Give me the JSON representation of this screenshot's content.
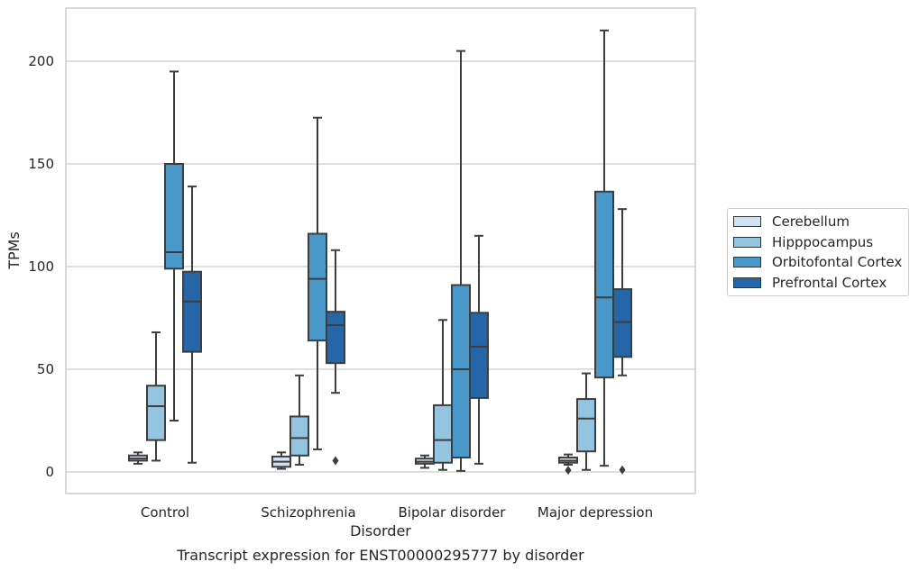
{
  "chart_data": {
    "type": "box",
    "caption": "Transcript expression for ENST00000295777 by disorder",
    "xlabel": "Disorder",
    "ylabel": "TPMs",
    "ylim": [
      -10,
      227
    ],
    "yticks": [
      0,
      50,
      100,
      150,
      200
    ],
    "grid": "horizontal",
    "legend_position": "right",
    "categories": [
      "Control",
      "Schizophrenia",
      "Bipolar disorder",
      "Major depression"
    ],
    "series": [
      {
        "name": "Cerebellum",
        "color": "#d0e1f2",
        "boxes": [
          {
            "whislo": 4,
            "q1": 5.5,
            "med": 6.5,
            "q3": 8,
            "whishi": 9.5,
            "fliers": []
          },
          {
            "whislo": 1.5,
            "q1": 2.5,
            "med": 5,
            "q3": 7.5,
            "whishi": 9.5,
            "fliers": []
          },
          {
            "whislo": 2,
            "q1": 4,
            "med": 5,
            "q3": 6.5,
            "whishi": 8,
            "fliers": []
          },
          {
            "whislo": 3.5,
            "q1": 4.5,
            "med": 5.5,
            "q3": 7,
            "whishi": 8.5,
            "fliers": [
              0.8
            ]
          }
        ]
      },
      {
        "name": "Hipppocampus",
        "color": "#94c4df",
        "boxes": [
          {
            "whislo": 5.5,
            "q1": 15.5,
            "med": 32,
            "q3": 42,
            "whishi": 68,
            "fliers": []
          },
          {
            "whislo": 3.5,
            "q1": 8,
            "med": 16.5,
            "q3": 27,
            "whishi": 47,
            "fliers": []
          },
          {
            "whislo": 1,
            "q1": 4.5,
            "med": 15.5,
            "q3": 32.5,
            "whishi": 74,
            "fliers": []
          },
          {
            "whislo": 1,
            "q1": 10,
            "med": 26,
            "q3": 35.5,
            "whishi": 48,
            "fliers": []
          }
        ]
      },
      {
        "name": "Orbitofontal Cortex",
        "color": "#4a98c9",
        "boxes": [
          {
            "whislo": 25,
            "q1": 99,
            "med": 107,
            "q3": 150,
            "whishi": 195,
            "fliers": []
          },
          {
            "whislo": 11,
            "q1": 64,
            "med": 94,
            "q3": 116,
            "whishi": 172.5,
            "fliers": []
          },
          {
            "whislo": 0.5,
            "q1": 7,
            "med": 50,
            "q3": 91,
            "whishi": 205,
            "fliers": []
          },
          {
            "whislo": 3,
            "q1": 46,
            "med": 85,
            "q3": 136.5,
            "whishi": 215,
            "fliers": []
          }
        ]
      },
      {
        "name": "Prefrontal Cortex",
        "color": "#2666a8",
        "boxes": [
          {
            "whislo": 4.5,
            "q1": 58.5,
            "med": 83,
            "q3": 97.5,
            "whishi": 139,
            "fliers": []
          },
          {
            "whislo": 38.5,
            "q1": 53,
            "med": 71.5,
            "q3": 78,
            "whishi": 108,
            "fliers": [
              5.5
            ]
          },
          {
            "whislo": 4,
            "q1": 36,
            "med": 61,
            "q3": 77.5,
            "whishi": 115,
            "fliers": []
          },
          {
            "whislo": 47,
            "q1": 56,
            "med": 73,
            "q3": 89,
            "whishi": 128,
            "fliers": [
              1
            ]
          }
        ]
      }
    ]
  }
}
